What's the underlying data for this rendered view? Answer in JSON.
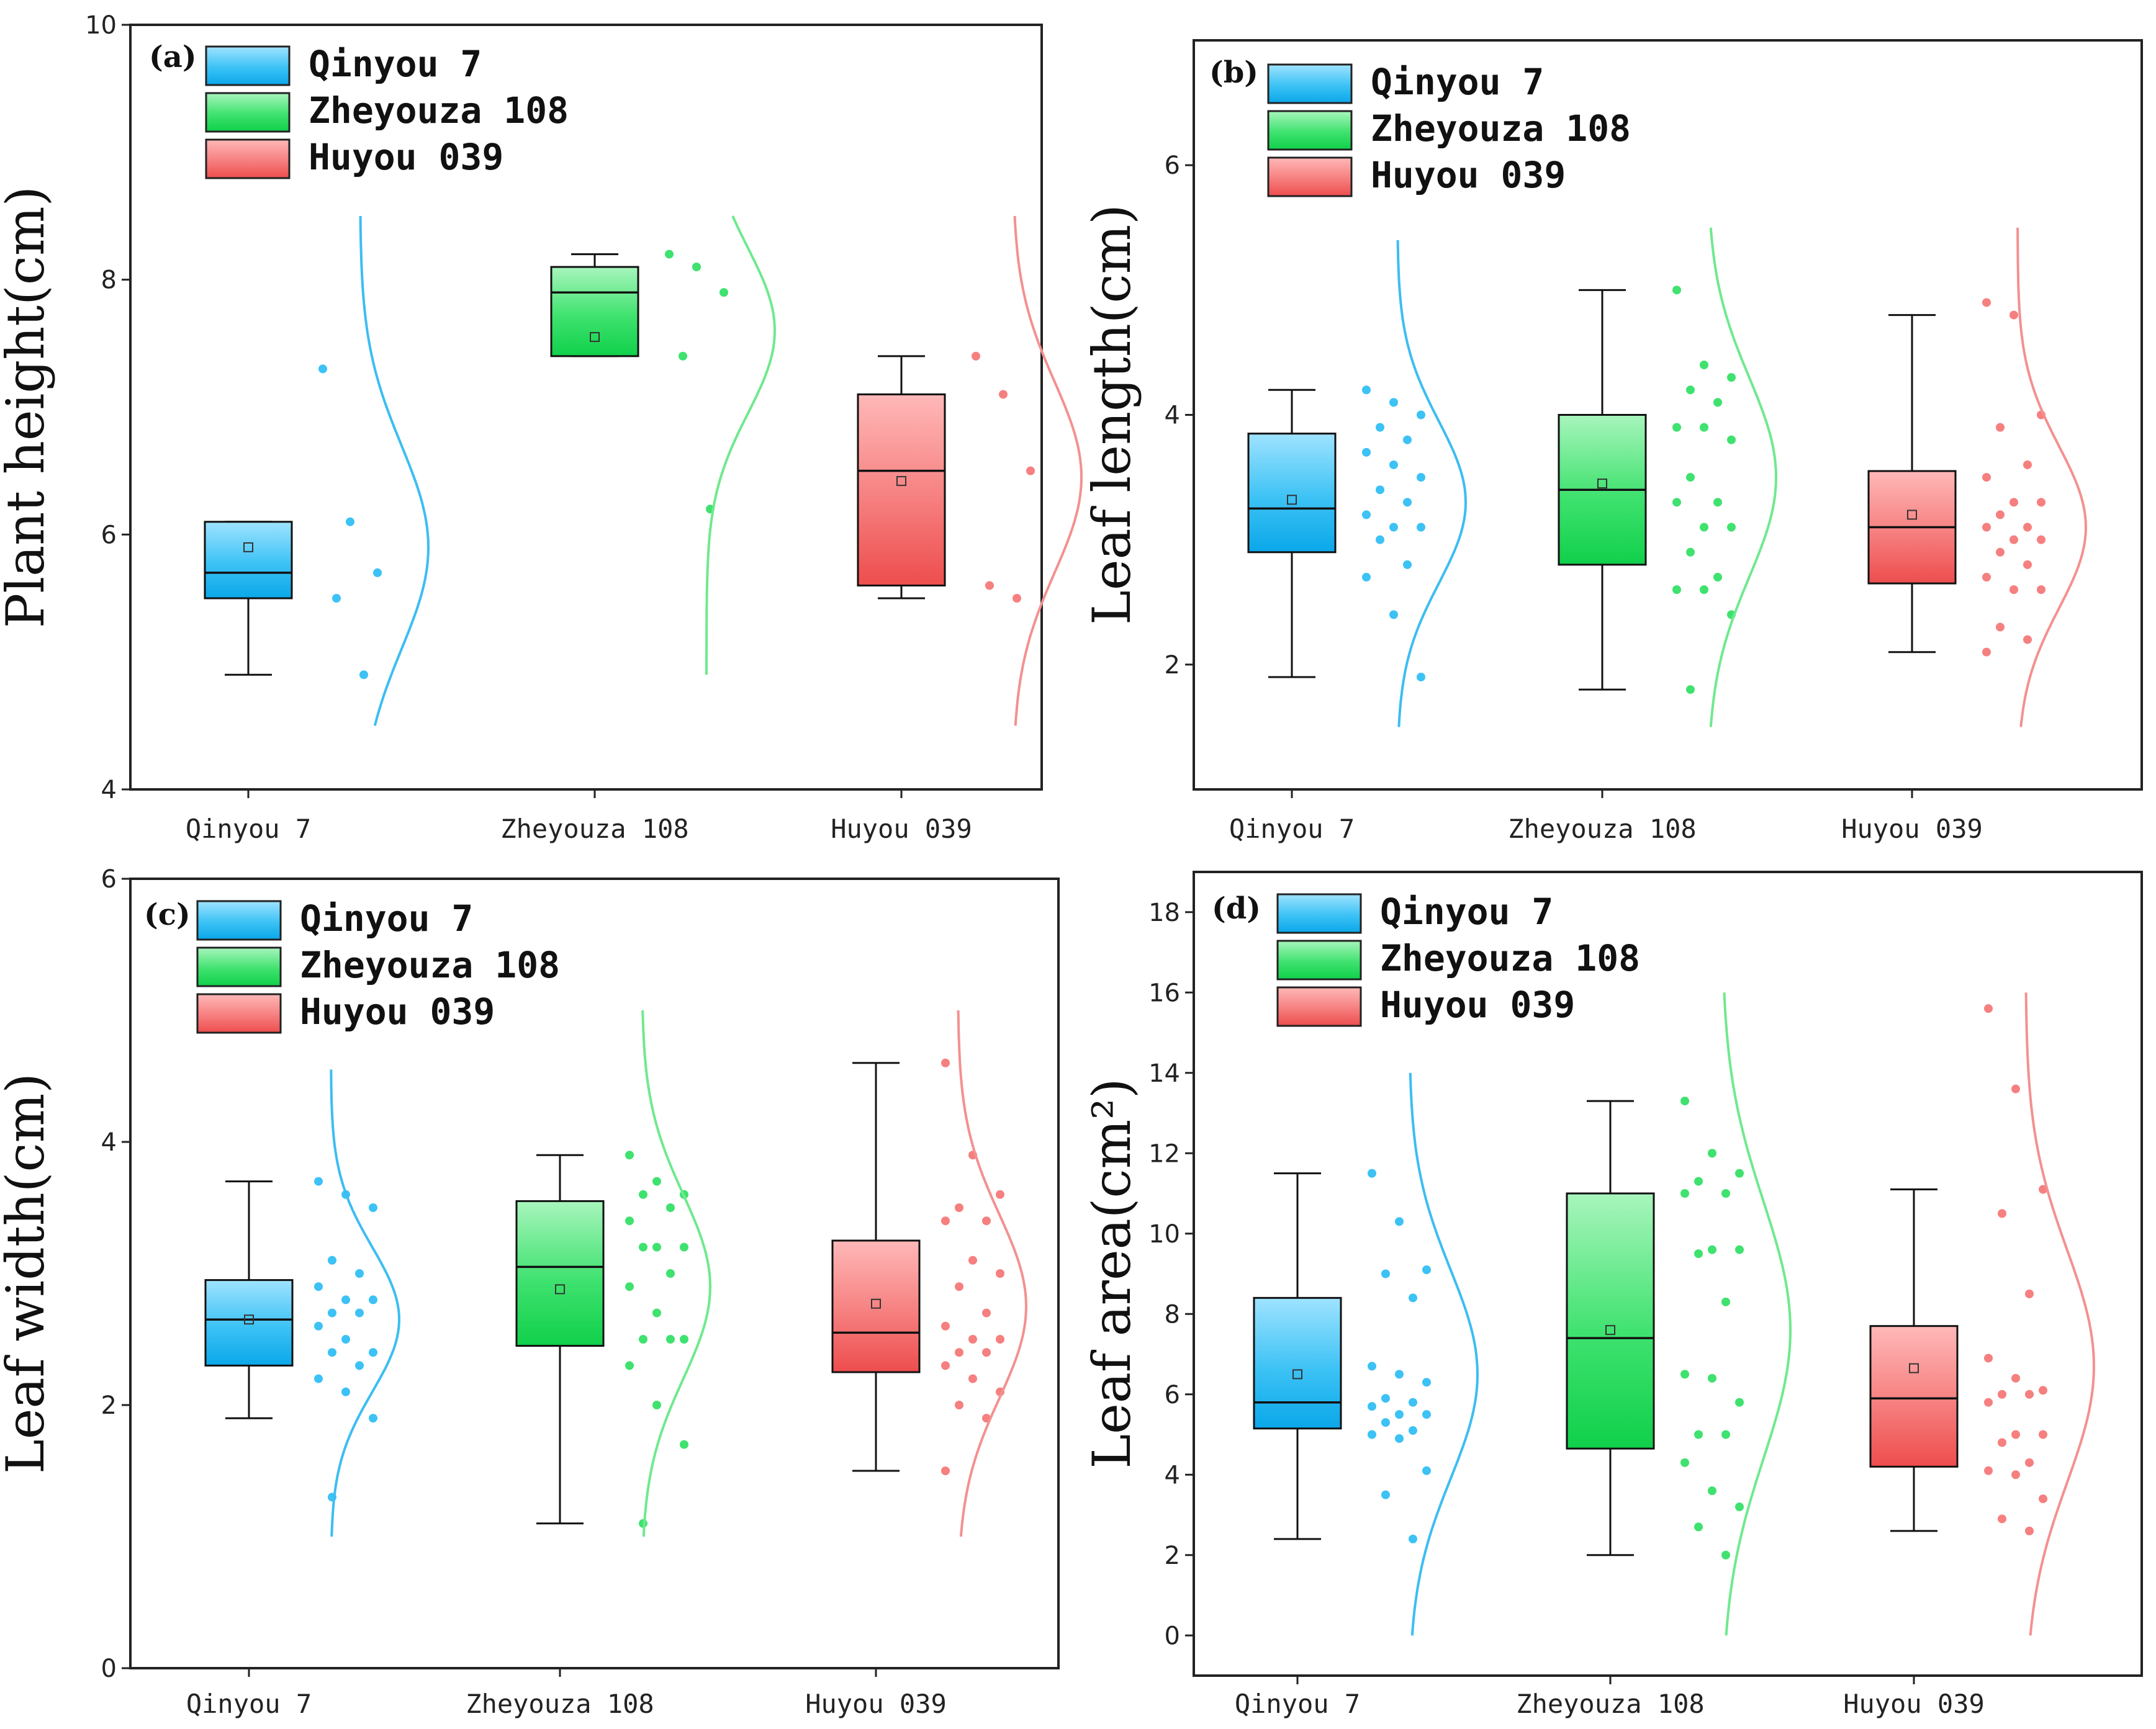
{
  "colors": {
    "Qinyou 7": {
      "light": "#9fe3ff",
      "mid": "#3cc2f5",
      "dark": "#0aa7e9",
      "curve": "#3cbdf2"
    },
    "Zheyouza 108": {
      "light": "#a8f5bc",
      "mid": "#3fe26f",
      "dark": "#10d04a",
      "curve": "#6fe98e"
    },
    "Huyou 039": {
      "light": "#ffb8b8",
      "mid": "#f67f7f",
      "dark": "#ee4d4d",
      "curve": "#f49090"
    }
  },
  "chart_data": [
    {
      "panel": "(a)",
      "type": "box-half-violin",
      "ylabel": "Plant height(cm)",
      "ylim": [
        4,
        10
      ],
      "yticks": [
        4,
        6,
        8,
        10
      ],
      "categories": [
        "Qinyou 7",
        "Zheyouza 108",
        "Huyou 039"
      ],
      "legend": [
        "Qinyou 7",
        "Zheyouza 108",
        "Huyou 039"
      ],
      "boxes": [
        {
          "min": 4.9,
          "q1": 5.5,
          "median": 5.7,
          "q3": 6.1,
          "max": 6.1,
          "mean": 5.9
        },
        {
          "min": 7.4,
          "q1": 7.4,
          "median": 7.9,
          "q3": 8.1,
          "max": 8.2,
          "mean": 7.55
        },
        {
          "min": 5.5,
          "q1": 5.6,
          "median": 6.5,
          "q3": 7.1,
          "max": 7.4,
          "mean": 6.42
        }
      ],
      "points": [
        [
          7.3,
          6.1,
          5.7,
          5.5,
          4.9
        ],
        [
          8.2,
          8.1,
          7.9,
          7.4,
          6.2
        ],
        [
          7.4,
          7.1,
          6.5,
          5.6,
          5.5
        ]
      ],
      "dist": [
        {
          "mu": 5.9,
          "sd": 0.8,
          "range": [
            4.5,
            8.5
          ]
        },
        {
          "mu": 7.6,
          "sd": 0.65,
          "range": [
            4.9,
            8.5
          ]
        },
        {
          "mu": 6.45,
          "sd": 0.75,
          "range": [
            4.5,
            8.5
          ]
        }
      ]
    },
    {
      "panel": "(b)",
      "type": "box-half-violin",
      "ylabel": "Leaf length(cm)",
      "ylim": [
        1,
        7
      ],
      "yticks": [
        2,
        4,
        6
      ],
      "categories": [
        "Qinyou 7",
        "Zheyouza 108",
        "Huyou 039"
      ],
      "legend": [
        "Qinyou 7",
        "Zheyouza 108",
        "Huyou 039"
      ],
      "boxes": [
        {
          "min": 1.9,
          "q1": 2.9,
          "median": 3.25,
          "q3": 3.85,
          "max": 4.2,
          "mean": 3.32
        },
        {
          "min": 1.8,
          "q1": 2.8,
          "median": 3.4,
          "q3": 4.0,
          "max": 5.0,
          "mean": 3.45
        },
        {
          "min": 2.1,
          "q1": 2.65,
          "median": 3.1,
          "q3": 3.55,
          "max": 4.8,
          "mean": 3.2
        }
      ],
      "points": [
        [
          4.2,
          4.1,
          4.0,
          3.9,
          3.8,
          3.7,
          3.6,
          3.5,
          3.4,
          3.3,
          3.2,
          3.1,
          3.1,
          3.0,
          2.8,
          2.7,
          2.4,
          1.9
        ],
        [
          5.0,
          4.4,
          4.3,
          4.2,
          4.1,
          3.9,
          3.9,
          3.8,
          3.5,
          3.3,
          3.3,
          3.1,
          3.1,
          2.9,
          2.7,
          2.6,
          2.6,
          2.4,
          1.8
        ],
        [
          4.9,
          4.8,
          4.0,
          3.9,
          3.6,
          3.5,
          3.3,
          3.3,
          3.2,
          3.1,
          3.1,
          3.0,
          3.0,
          2.9,
          2.8,
          2.7,
          2.6,
          2.6,
          2.3,
          2.2,
          2.1
        ]
      ],
      "dist": [
        {
          "mu": 3.3,
          "sd": 0.65,
          "range": [
            1.5,
            5.4
          ]
        },
        {
          "mu": 3.5,
          "sd": 0.8,
          "range": [
            1.5,
            5.5
          ]
        },
        {
          "mu": 3.1,
          "sd": 0.65,
          "range": [
            1.5,
            5.5
          ]
        }
      ]
    },
    {
      "panel": "(c)",
      "type": "box-half-violin",
      "ylabel": "Leaf width(cm)",
      "ylim": [
        0,
        6
      ],
      "yticks": [
        0,
        2,
        4,
        6
      ],
      "categories": [
        "Qinyou 7",
        "Zheyouza 108",
        "Huyou 039"
      ],
      "legend": [
        "Qinyou 7",
        "Zheyouza 108",
        "Huyou 039"
      ],
      "boxes": [
        {
          "min": 1.9,
          "q1": 2.3,
          "median": 2.65,
          "q3": 2.95,
          "max": 3.7,
          "mean": 2.65
        },
        {
          "min": 1.1,
          "q1": 2.45,
          "median": 3.05,
          "q3": 3.55,
          "max": 3.9,
          "mean": 2.88
        },
        {
          "min": 1.5,
          "q1": 2.25,
          "median": 2.55,
          "q3": 3.25,
          "max": 4.6,
          "mean": 2.77
        }
      ],
      "points": [
        [
          3.7,
          3.6,
          3.5,
          3.1,
          3.0,
          2.9,
          2.8,
          2.8,
          2.7,
          2.7,
          2.6,
          2.5,
          2.4,
          2.4,
          2.3,
          2.2,
          2.1,
          1.9,
          1.3
        ],
        [
          3.9,
          3.7,
          3.6,
          3.6,
          3.5,
          3.4,
          3.2,
          3.2,
          3.2,
          3.0,
          2.9,
          2.7,
          2.5,
          2.5,
          2.5,
          2.3,
          2.0,
          1.7,
          1.1
        ],
        [
          4.6,
          3.9,
          3.6,
          3.5,
          3.4,
          3.4,
          3.1,
          3.0,
          2.9,
          2.7,
          2.6,
          2.5,
          2.5,
          2.4,
          2.4,
          2.3,
          2.2,
          2.1,
          2.0,
          1.9,
          1.5
        ]
      ],
      "dist": [
        {
          "mu": 2.65,
          "sd": 0.55,
          "range": [
            1.0,
            4.55
          ]
        },
        {
          "mu": 2.9,
          "sd": 0.7,
          "range": [
            1.0,
            5.0
          ]
        },
        {
          "mu": 2.75,
          "sd": 0.7,
          "range": [
            1.0,
            5.0
          ]
        }
      ]
    },
    {
      "panel": "(d)",
      "type": "box-half-violin",
      "ylabel": "Leaf area(cm²)",
      "ylim": [
        -1,
        19
      ],
      "yticks": [
        0,
        2,
        4,
        6,
        8,
        10,
        12,
        14,
        16,
        18
      ],
      "categories": [
        "Qinyou 7",
        "Zheyouza 108",
        "Huyou 039"
      ],
      "legend": [
        "Qinyou 7",
        "Zheyouza 108",
        "Huyou 039"
      ],
      "boxes": [
        {
          "min": 2.4,
          "q1": 5.15,
          "median": 5.8,
          "q3": 8.4,
          "max": 11.5,
          "mean": 6.5
        },
        {
          "min": 2.0,
          "q1": 4.65,
          "median": 7.4,
          "q3": 11.0,
          "max": 13.3,
          "mean": 7.6
        },
        {
          "min": 2.6,
          "q1": 4.2,
          "median": 5.9,
          "q3": 7.7,
          "max": 11.1,
          "mean": 6.65
        }
      ],
      "points": [
        [
          11.5,
          10.3,
          9.1,
          9.0,
          8.4,
          6.7,
          6.5,
          6.3,
          5.9,
          5.8,
          5.7,
          5.5,
          5.5,
          5.3,
          5.1,
          5.0,
          4.9,
          4.1,
          3.5,
          2.4
        ],
        [
          13.3,
          12.0,
          11.5,
          11.3,
          11.0,
          11.0,
          9.6,
          9.6,
          9.5,
          8.3,
          6.5,
          6.4,
          5.8,
          5.0,
          5.0,
          4.3,
          3.6,
          3.2,
          2.7,
          2.0
        ],
        [
          15.6,
          13.6,
          11.1,
          10.5,
          8.5,
          6.9,
          6.4,
          6.1,
          6.0,
          6.0,
          5.8,
          5.0,
          5.0,
          4.8,
          4.3,
          4.1,
          4.0,
          3.4,
          2.9,
          2.6
        ]
      ],
      "dist": [
        {
          "mu": 6.5,
          "sd": 2.6,
          "range": [
            0.0,
            14.0
          ]
        },
        {
          "mu": 7.6,
          "sd": 3.2,
          "range": [
            0.0,
            16.0
          ]
        },
        {
          "mu": 6.7,
          "sd": 2.9,
          "range": [
            0.0,
            16.0
          ]
        }
      ]
    }
  ]
}
